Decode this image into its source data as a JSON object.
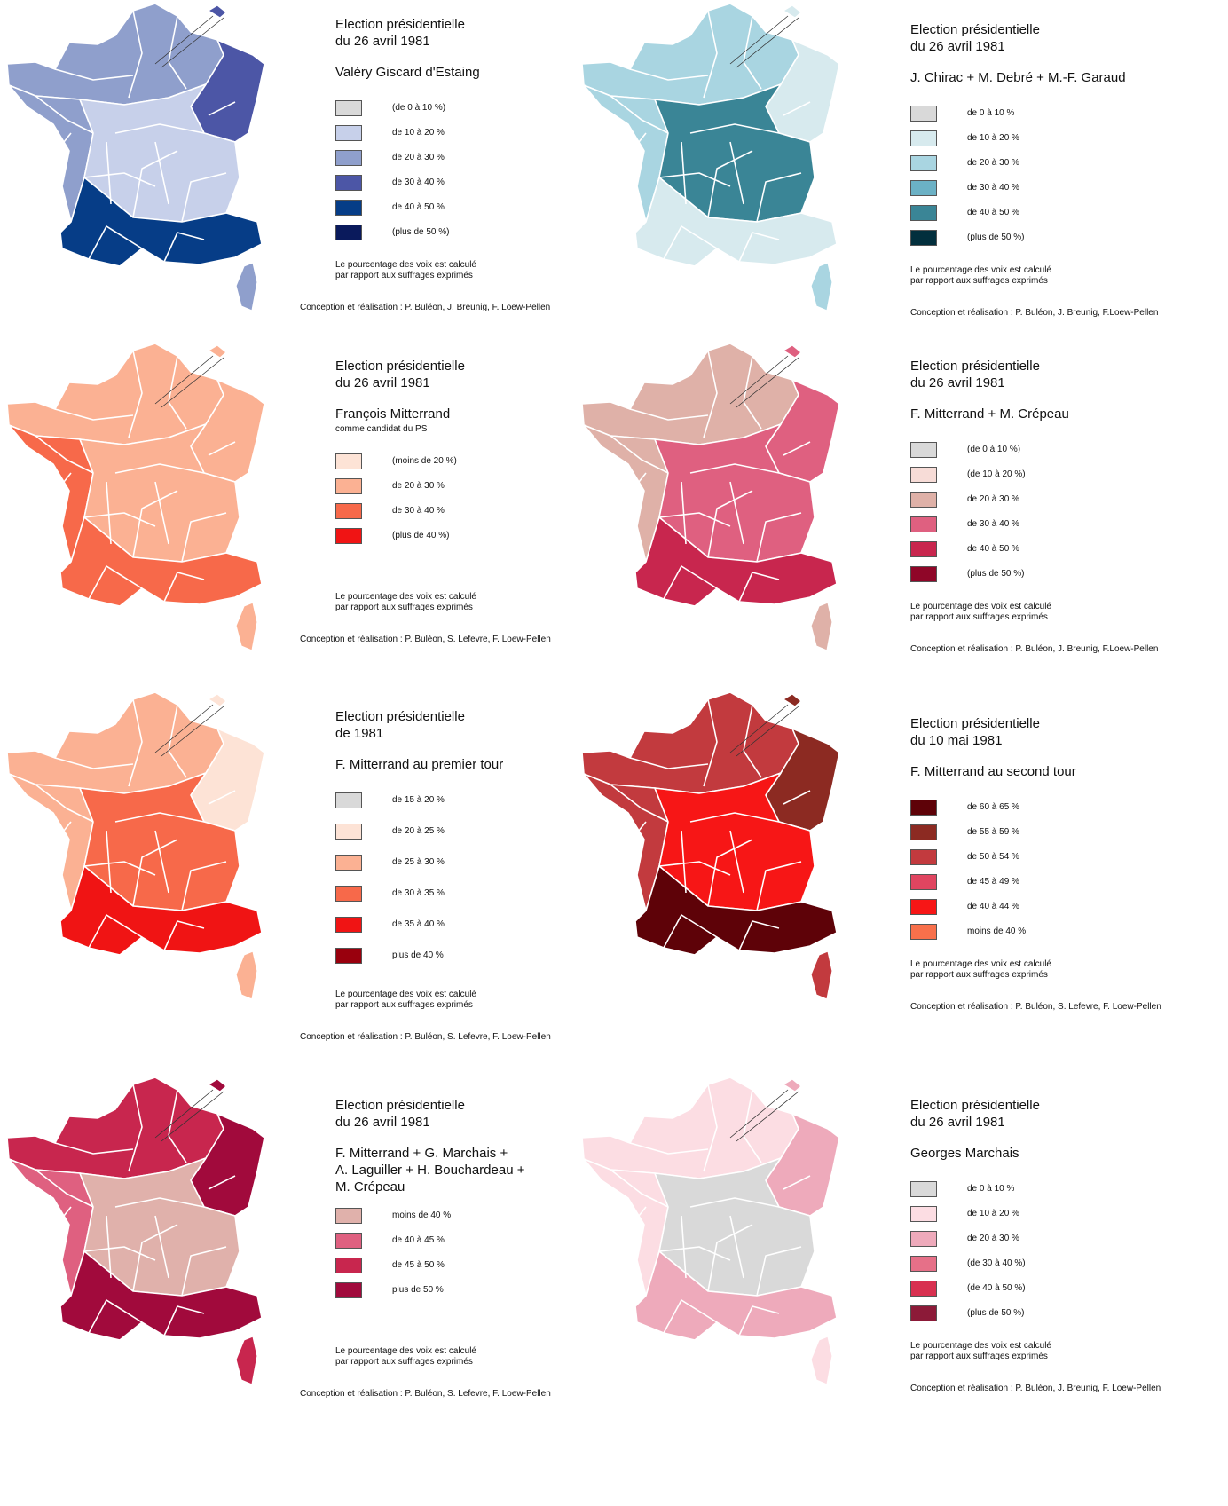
{
  "panels": [
    {
      "title": [
        "Election présidentielle",
        "du 26 avril 1981"
      ],
      "candidate": [
        "Valéry Giscard d'Estaing"
      ],
      "subtitle": "",
      "legend": [
        {
          "label": "(de 0 à 10 %)",
          "color": "#d9d9d9"
        },
        {
          "label": "de 10 à 20 %",
          "color": "#c7d0ea"
        },
        {
          "label": "de 20 à 30 %",
          "color": "#8f9fcc"
        },
        {
          "label": "de 30 à 40 %",
          "color": "#4c56a6"
        },
        {
          "label": "de 40 à 50 %",
          "color": "#063d87"
        },
        {
          "label": "(plus de 50 %)",
          "color": "#0a1a5c"
        }
      ],
      "map_colors": [
        "#8f9fcc",
        "#4c56a6",
        "#8f9fcc",
        "#c7d0ea",
        "#063d87"
      ],
      "footnote": [
        "Le pourcentage des voix est calculé",
        "par rapport aux suffrages exprimés"
      ],
      "credit": "Conception et réalisation : P. Buléon, J. Breunig, F. Loew-Pellen"
    },
    {
      "title": [
        "Election présidentielle",
        "du 26 avril 1981"
      ],
      "candidate": [
        "J. Chirac + M. Debré + M.-F. Garaud"
      ],
      "subtitle": "",
      "legend": [
        {
          "label": "de 0 à 10 %",
          "color": "#d9d9d9"
        },
        {
          "label": "de 10 à 20 %",
          "color": "#d7eaee"
        },
        {
          "label": "de 20 à 30 %",
          "color": "#a9d5e1"
        },
        {
          "label": "de 30 à 40 %",
          "color": "#6bb1c5"
        },
        {
          "label": "de 40 à 50 %",
          "color": "#3a8596"
        },
        {
          "label": "(plus de 50 %)",
          "color": "#022f3d"
        }
      ],
      "map_colors": [
        "#a9d5e1",
        "#d7eaee",
        "#a9d5e1",
        "#3a8596",
        "#d7eaee"
      ],
      "footnote": [
        "Le pourcentage des voix est calculé",
        "par rapport aux suffrages exprimés"
      ],
      "credit": "Conception et réalisation : P. Buléon, J. Breunig, F.Loew-Pellen"
    },
    {
      "title": [
        "Election présidentielle",
        "du 26 avril 1981"
      ],
      "candidate": [
        "François Mitterrand"
      ],
      "subtitle": "comme candidat du PS",
      "legend": [
        {
          "label": "(moins de 20 %)",
          "color": "#fde3d6"
        },
        {
          "label": "de 20 à 30 %",
          "color": "#fbb193"
        },
        {
          "label": "de 30 à 40 %",
          "color": "#f7694a"
        },
        {
          "label": "(plus de 40 %)",
          "color": "#f01414"
        }
      ],
      "map_colors": [
        "#fbb193",
        "#fbb193",
        "#f7694a",
        "#fbb193",
        "#f7694a"
      ],
      "footnote": [
        "Le pourcentage des voix est calculé",
        "par rapport aux suffrages exprimés"
      ],
      "credit": "Conception et réalisation : P. Buléon, S. Lefevre, F. Loew-Pellen"
    },
    {
      "title": [
        "Election présidentielle",
        "du 26 avril 1981"
      ],
      "candidate": [
        "F. Mitterrand + M. Crépeau"
      ],
      "subtitle": "",
      "legend": [
        {
          "label": "(de 0 à 10 %)",
          "color": "#d9d9d9"
        },
        {
          "label": "(de 10 à 20 %)",
          "color": "#f7dcd7"
        },
        {
          "label": "de 20 à 30 %",
          "color": "#dfb1a8"
        },
        {
          "label": "de 30 à 40 %",
          "color": "#df6080"
        },
        {
          "label": "de 40 à 50 %",
          "color": "#c8264e"
        },
        {
          "label": "(plus de 50 %)",
          "color": "#8f0628"
        }
      ],
      "map_colors": [
        "#dfb1a8",
        "#df6080",
        "#dfb1a8",
        "#df6080",
        "#c8264e"
      ],
      "footnote": [
        "Le pourcentage des voix est calculé",
        "par rapport aux suffrages exprimés"
      ],
      "credit": "Conception et réalisation : P. Buléon, J. Breunig, F.Loew-Pellen"
    },
    {
      "title": [
        "Election présidentielle",
        "de 1981"
      ],
      "candidate": [
        "F. Mitterrand au premier tour"
      ],
      "subtitle": "",
      "legend": [
        {
          "label": "de 15 à 20 %",
          "color": "#d9d9d9"
        },
        {
          "label": "de 20 à 25 %",
          "color": "#fde3d6"
        },
        {
          "label": "de 25 à 30 %",
          "color": "#fbb193"
        },
        {
          "label": "de 30 à 35 %",
          "color": "#f7694a"
        },
        {
          "label": "de 35 à 40 %",
          "color": "#f01414"
        },
        {
          "label": "plus de 40 %",
          "color": "#99000d"
        }
      ],
      "map_colors": [
        "#fbb193",
        "#fde3d6",
        "#fbb193",
        "#f7694a",
        "#f01414"
      ],
      "footnote": [
        "Le pourcentage des voix est calculé",
        "par rapport aux suffrages exprimés"
      ],
      "credit": "Conception et réalisation : P. Buléon, S. Lefevre, F. Loew-Pellen"
    },
    {
      "title": [
        "Election présidentielle",
        "du 10 mai 1981"
      ],
      "candidate": [
        "F. Mitterrand au second tour"
      ],
      "subtitle": "",
      "legend": [
        {
          "label": "de 60 à 65 %",
          "color": "#5e0208"
        },
        {
          "label": "de 55 à 59 %",
          "color": "#8c2a22"
        },
        {
          "label": "de 50 à 54 %",
          "color": "#c23a3e"
        },
        {
          "label": "de 45 à 49 %",
          "color": "#e04560"
        },
        {
          "label": "de 40 à 44 %",
          "color": "#f71616"
        },
        {
          "label": "moins de 40 %",
          "color": "#f8704b"
        }
      ],
      "map_colors": [
        "#c23a3e",
        "#8c2a22",
        "#c23a3e",
        "#f71616",
        "#5e0208"
      ],
      "footnote": [
        "Le pourcentage des voix est calculé",
        "par rapport aux suffrages exprimés"
      ],
      "credit": "Conception et réalisation : P. Buléon, S. Lefevre, F. Loew-Pellen"
    },
    {
      "title": [
        "Election présidentielle",
        "du 26 avril 1981"
      ],
      "candidate": [
        "F. Mitterrand + G. Marchais +",
        "A. Laguiller + H. Bouchardeau +",
        "M. Crépeau"
      ],
      "subtitle": "",
      "legend": [
        {
          "label": "moins de 40 %",
          "color": "#e0b1ab"
        },
        {
          "label": "de 40 à 45 %",
          "color": "#df6080"
        },
        {
          "label": "de 45 à 50 %",
          "color": "#c8264e"
        },
        {
          "label": "plus de 50 %",
          "color": "#a10a3c"
        }
      ],
      "map_colors": [
        "#c8264e",
        "#a10a3c",
        "#df6080",
        "#e0b1ab",
        "#a10a3c"
      ],
      "footnote": [
        "Le pourcentage des voix est calculé",
        "par rapport aux suffrages exprimés"
      ],
      "credit": "Conception et réalisation : P. Buléon, S. Lefevre, F. Loew-Pellen"
    },
    {
      "title": [
        "Election présidentielle",
        "du 26 avril 1981"
      ],
      "candidate": [
        "Georges Marchais"
      ],
      "subtitle": "",
      "legend": [
        {
          "label": "de 0 à 10 %",
          "color": "#d9d9d9"
        },
        {
          "label": "de 10 à 20 %",
          "color": "#fcdde3"
        },
        {
          "label": "de 20 à 30 %",
          "color": "#eeaabb"
        },
        {
          "label": "(de 30 à 40 %)",
          "color": "#e67088"
        },
        {
          "label": "(de 40 à 50 %)",
          "color": "#d83050"
        },
        {
          "label": "(plus de 50 %)",
          "color": "#8c1a38"
        }
      ],
      "map_colors": [
        "#fcdde3",
        "#eeaabb",
        "#fcdde3",
        "#d9d9d9",
        "#eeaabb"
      ],
      "footnote": [
        "Le pourcentage des voix est calculé",
        "par rapport aux suffrages exprimés"
      ],
      "credit": "Conception et réalisation : P. Buléon, J. Breunig, F. Loew-Pellen"
    }
  ]
}
